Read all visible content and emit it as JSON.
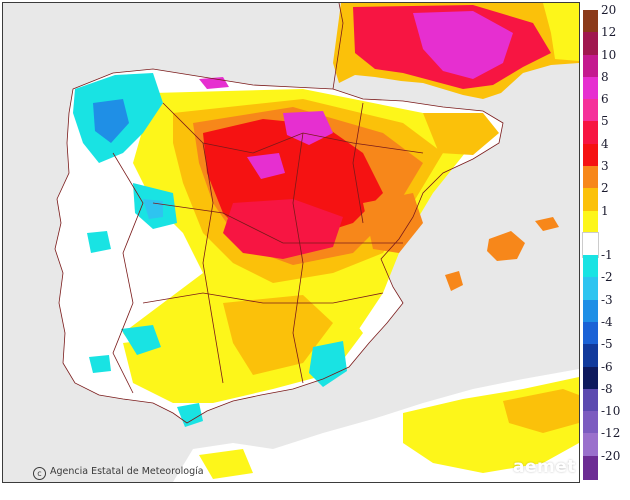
{
  "map": {
    "credit": "Agencia Estatal de Meteorología",
    "credit_symbol": "c",
    "brand": "aemet",
    "colors": {
      "sea": "#e8e8e8",
      "land_neutral": "#ffffff",
      "borders": "#7a1a1a"
    }
  },
  "legend": [
    {
      "label": "20",
      "color": "#8b3a1a"
    },
    {
      "label": "12",
      "color": "#a0184f"
    },
    {
      "label": "10",
      "color": "#c41a8f"
    },
    {
      "label": "8",
      "color": "#e62fd0"
    },
    {
      "label": "6",
      "color": "#f5309a"
    },
    {
      "label": "5",
      "color": "#f71542"
    },
    {
      "label": "4",
      "color": "#f51212"
    },
    {
      "label": "3",
      "color": "#f7871a"
    },
    {
      "label": "2",
      "color": "#fbc10a"
    },
    {
      "label": "1",
      "color": "#fdf61a"
    },
    {
      "label": "",
      "color": "#ffffff"
    },
    {
      "label": "-1",
      "color": "#19e3e3"
    },
    {
      "label": "-2",
      "color": "#2ec4f0"
    },
    {
      "label": "-3",
      "color": "#1f8fe6"
    },
    {
      "label": "-4",
      "color": "#1b62d6"
    },
    {
      "label": "-5",
      "color": "#123a9c"
    },
    {
      "label": "-6",
      "color": "#0e1a5e"
    },
    {
      "label": "-8",
      "color": "#5c4ab0"
    },
    {
      "label": "-10",
      "color": "#7c5cc0"
    },
    {
      "label": "-12",
      "color": "#9a70cc"
    },
    {
      "label": "-20",
      "color": "#6c2c94"
    }
  ]
}
